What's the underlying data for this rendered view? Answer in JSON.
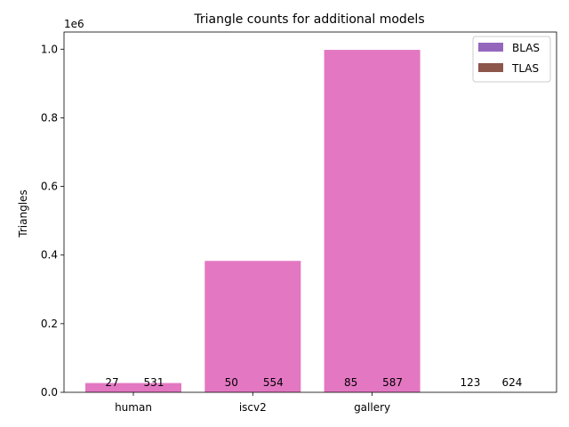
{
  "chart_data": {
    "type": "bar",
    "title": "Triangle counts for additional models",
    "xlabel": "",
    "ylabel": "Triangles",
    "y_offset_text": "1e6",
    "ylim": [
      0,
      1050000
    ],
    "yticks": [
      0,
      200000,
      400000,
      600000,
      800000,
      1000000
    ],
    "ytick_labels": [
      "0.0",
      "0.2",
      "0.4",
      "0.6",
      "0.8",
      "1.0"
    ],
    "categories": [
      "human",
      "iscv2",
      "gallery",
      ""
    ],
    "values": [
      27000,
      383000,
      998000,
      0
    ],
    "bar_color": "#e377c2",
    "legend_position": "top-right",
    "legend": [
      {
        "label": "BLAS",
        "color": "#9467bd"
      },
      {
        "label": "TLAS",
        "color": "#8c564b"
      }
    ],
    "annotations": [
      {
        "category": 0,
        "left": "27",
        "right": "531"
      },
      {
        "category": 1,
        "left": "50",
        "right": "554"
      },
      {
        "category": 2,
        "left": "85",
        "right": "587"
      },
      {
        "category": 3,
        "left": "123",
        "right": "624"
      }
    ]
  }
}
